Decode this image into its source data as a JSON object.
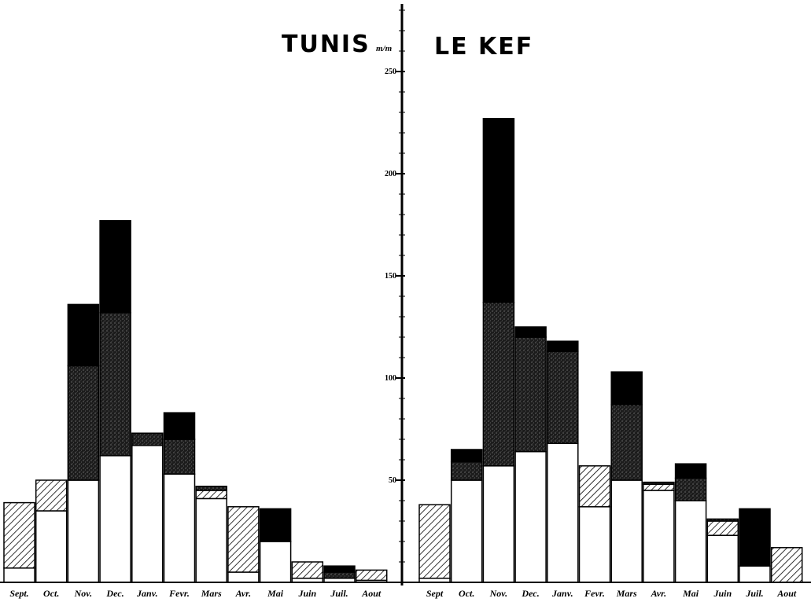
{
  "chart_data": {
    "type": "bar",
    "unit_label": "m/m",
    "yticks": [
      50,
      100,
      150,
      200,
      250
    ],
    "ytick_labels": [
      "50",
      "100",
      "150",
      "200",
      "250"
    ],
    "ylim": [
      0,
      290
    ],
    "colors": {
      "white": "#ffffff",
      "hatch": "#000000",
      "stipple": "#1c1c1c",
      "black": "#000000"
    },
    "panels": [
      {
        "title": "TUNIS",
        "categories": [
          "Sept.",
          "Oct.",
          "Nov.",
          "Dec.",
          "Janv.",
          "Fevr.",
          "Mars",
          "Avr.",
          "Mai",
          "Juin",
          "Juil.",
          "Aout"
        ],
        "series": [
          {
            "fill": "white",
            "values": [
              7,
              35,
              50,
              62,
              67,
              53,
              41,
              5,
              20,
              2,
              2,
              1
            ]
          },
          {
            "fill": "hatch",
            "values": [
              32,
              15,
              0,
              0,
              0,
              0,
              4,
              32,
              0,
              8,
              0,
              5
            ]
          },
          {
            "fill": "stipple",
            "values": [
              0,
              0,
              56,
              70,
              6,
              17,
              2,
              0,
              0,
              0,
              3,
              0
            ]
          },
          {
            "fill": "black",
            "values": [
              0,
              0,
              30,
              45,
              0,
              13,
              0,
              0,
              16,
              0,
              3,
              0
            ]
          }
        ]
      },
      {
        "title": "LE KEF",
        "categories": [
          "Sept",
          "Oct.",
          "Nov.",
          "Dec.",
          "Janv.",
          "Fevr.",
          "Mars",
          "Avr.",
          "Mai",
          "Juin",
          "Juil.",
          "Aout"
        ],
        "series": [
          {
            "fill": "white",
            "values": [
              2,
              50,
              57,
              64,
              68,
              37,
              50,
              45,
              40,
              23,
              8,
              0
            ]
          },
          {
            "fill": "hatch",
            "values": [
              36,
              0,
              0,
              0,
              0,
              20,
              0,
              3,
              0,
              7,
              0,
              17
            ]
          },
          {
            "fill": "stipple",
            "values": [
              0,
              9,
              80,
              56,
              45,
              0,
              37,
              1,
              11,
              1,
              0,
              0
            ]
          },
          {
            "fill": "black",
            "values": [
              0,
              6,
              90,
              5,
              5,
              0,
              16,
              0,
              7,
              0,
              28,
              0
            ]
          }
        ]
      }
    ]
  }
}
